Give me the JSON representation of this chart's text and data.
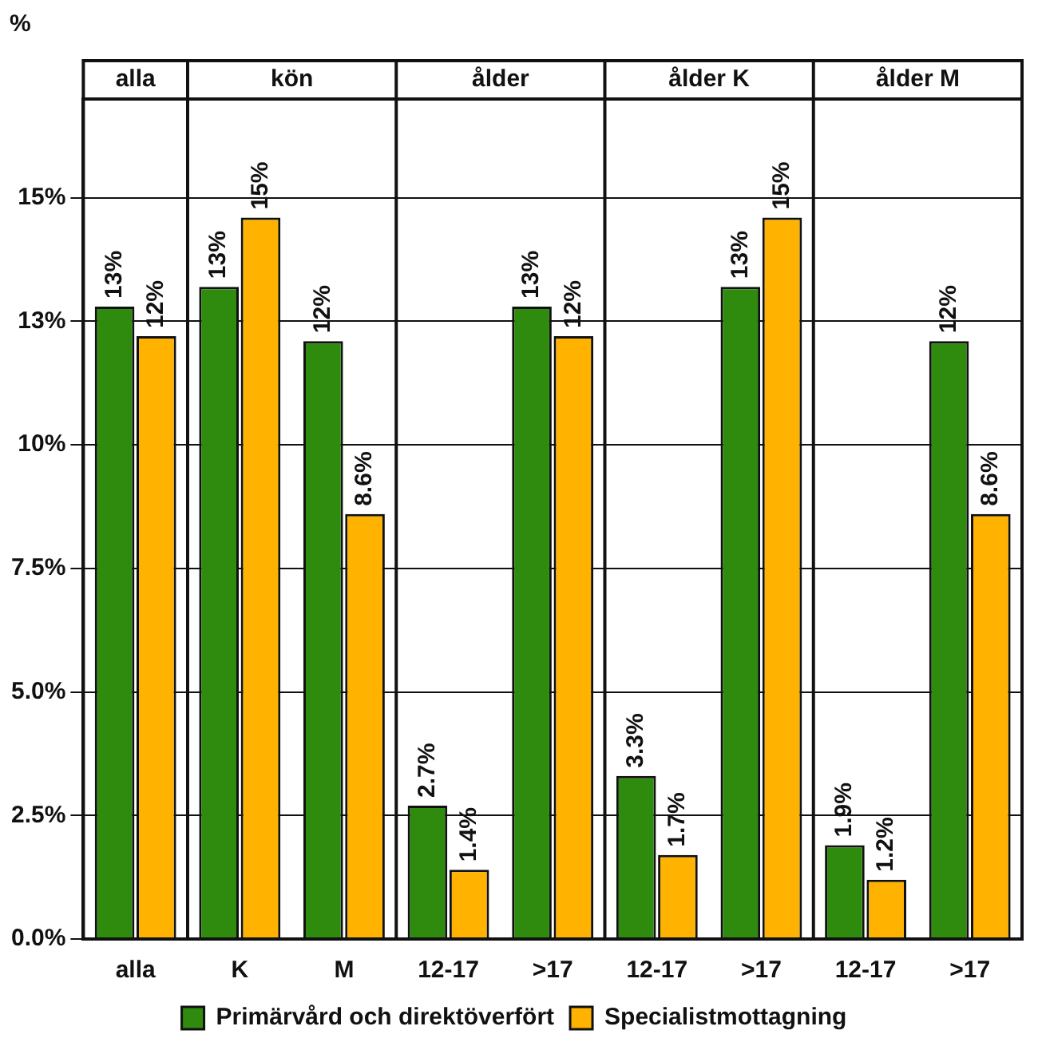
{
  "chart_data": {
    "type": "bar",
    "ylabel": "%",
    "categories": [
      "alla",
      "K",
      "M",
      "12-17",
      ">17",
      "12-17",
      ">17",
      "12-17",
      ">17"
    ],
    "annotations": [
      "alla",
      "kön",
      "ålder",
      "ålder K",
      "ålder M"
    ],
    "series": [
      {
        "name": "Primärvård och direktöverfört",
        "color": "#2e8b0e",
        "values": [
          12.8,
          13.2,
          12.1,
          2.7,
          12.8,
          3.3,
          13.2,
          1.9,
          12.1
        ],
        "value_labels": [
          "13%",
          "13%",
          "12%",
          "2.7%",
          "13%",
          "3.3%",
          "13%",
          "1.9%",
          "12%"
        ]
      },
      {
        "name": "Specialistmottagning",
        "color": "#ffb300",
        "values": [
          12.2,
          14.6,
          8.6,
          1.4,
          12.2,
          1.7,
          14.6,
          1.2,
          8.6
        ],
        "value_labels": [
          "12%",
          "15%",
          "8.6%",
          "1.4%",
          "12%",
          "1.7%",
          "15%",
          "1.2%",
          "8.6%"
        ]
      }
    ],
    "ylim": [
      0,
      17
    ],
    "yticks": [
      {
        "value": 0,
        "label": "0.0%"
      },
      {
        "value": 2.5,
        "label": "2.5%"
      },
      {
        "value": 5,
        "label": "5.0%"
      },
      {
        "value": 7.5,
        "label": "7.5%"
      },
      {
        "value": 10,
        "label": "10%"
      },
      {
        "value": 12.5,
        "label": "13%"
      },
      {
        "value": 15,
        "label": "15%"
      }
    ],
    "grid": "y",
    "legend": "bottom"
  }
}
